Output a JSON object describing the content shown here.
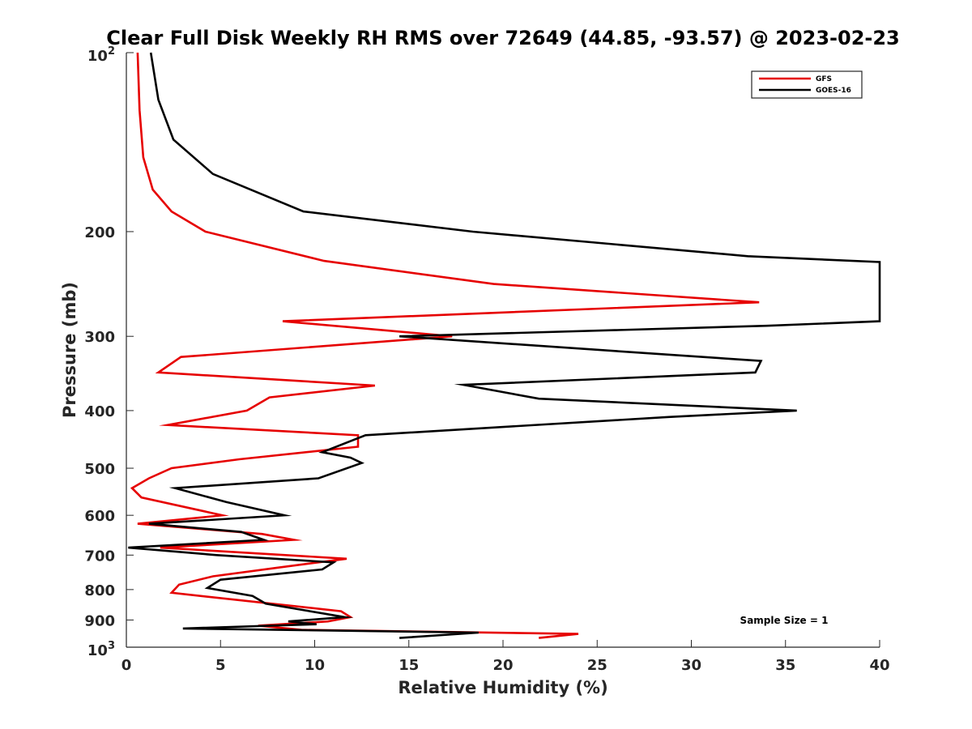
{
  "chart_data": {
    "type": "line",
    "title": "Clear Full Disk Weekly RH RMS over 72649 (44.85, -93.57) @ 2023-02-23",
    "xlabel": "Relative Humidity (%)",
    "ylabel": "Pressure (mb)",
    "xlim": [
      0,
      40
    ],
    "ylim": [
      100,
      1000
    ],
    "yscale": "log",
    "y_reversed": true,
    "grid": false,
    "legend_position": "top-right",
    "x_ticks": [
      0,
      5,
      10,
      15,
      20,
      25,
      30,
      35,
      40
    ],
    "x_tick_labels": [
      "0",
      "5",
      "10",
      "15",
      "20",
      "25",
      "30",
      "35",
      "40"
    ],
    "y_ticks": [
      100,
      200,
      300,
      400,
      500,
      600,
      700,
      800,
      900,
      1000
    ],
    "y_tick_labels": [
      {
        "base": "10",
        "exp": "2"
      },
      {
        "text": "200"
      },
      {
        "text": "300"
      },
      {
        "text": "400"
      },
      {
        "text": "500"
      },
      {
        "text": "600"
      },
      {
        "text": "700"
      },
      {
        "text": "800"
      },
      {
        "text": "900"
      },
      {
        "base": "10",
        "exp": "3"
      }
    ],
    "series": [
      {
        "name": "GFS",
        "color": "#e60000",
        "points": [
          [
            0.6,
            100
          ],
          [
            0.7,
            125
          ],
          [
            0.9,
            150
          ],
          [
            1.4,
            170
          ],
          [
            2.4,
            185
          ],
          [
            4.2,
            200
          ],
          [
            10.5,
            224
          ],
          [
            19.5,
            245
          ],
          [
            33.6,
            263
          ],
          [
            8.3,
            283
          ],
          [
            17.3,
            300
          ],
          [
            2.9,
            325
          ],
          [
            1.7,
            345
          ],
          [
            13.2,
            363
          ],
          [
            7.6,
            380
          ],
          [
            6.4,
            400
          ],
          [
            2.2,
            423
          ],
          [
            12.3,
            440
          ],
          [
            12.3,
            460
          ],
          [
            6.0,
            483
          ],
          [
            2.4,
            500
          ],
          [
            1.2,
            520
          ],
          [
            0.3,
            540
          ],
          [
            0.8,
            560
          ],
          [
            5.1,
            600
          ],
          [
            0.6,
            620
          ],
          [
            7.2,
            645
          ],
          [
            8.9,
            660
          ],
          [
            1.8,
            680
          ],
          [
            11.7,
            710
          ],
          [
            8.0,
            735
          ],
          [
            4.6,
            760
          ],
          [
            2.8,
            785
          ],
          [
            2.4,
            810
          ],
          [
            11.4,
            870
          ],
          [
            11.9,
            890
          ],
          [
            10.7,
            905
          ],
          [
            7.0,
            920
          ],
          [
            9.3,
            935
          ],
          [
            24.0,
            950
          ],
          [
            21.9,
            965
          ]
        ]
      },
      {
        "name": "GOES-16",
        "color": "#000000",
        "points": [
          [
            1.3,
            100
          ],
          [
            1.7,
            120
          ],
          [
            2.5,
            140
          ],
          [
            4.6,
            160
          ],
          [
            9.4,
            185
          ],
          [
            18.4,
            200
          ],
          [
            33.0,
            220
          ],
          [
            40.0,
            225
          ],
          [
            40.0,
            283
          ],
          [
            34.0,
            288
          ],
          [
            14.5,
            300
          ],
          [
            33.7,
            330
          ],
          [
            33.4,
            345
          ],
          [
            17.9,
            362
          ],
          [
            21.9,
            382
          ],
          [
            35.6,
            400
          ],
          [
            28.8,
            410
          ],
          [
            12.7,
            440
          ],
          [
            10.4,
            470
          ],
          [
            11.9,
            480
          ],
          [
            12.5,
            490
          ],
          [
            10.2,
            520
          ],
          [
            2.6,
            540
          ],
          [
            5.3,
            570
          ],
          [
            8.4,
            600
          ],
          [
            1.2,
            620
          ],
          [
            6.1,
            640
          ],
          [
            7.3,
            660
          ],
          [
            0.1,
            680
          ],
          [
            4.8,
            700
          ],
          [
            11.0,
            720
          ],
          [
            10.4,
            740
          ],
          [
            5.0,
            770
          ],
          [
            4.3,
            795
          ],
          [
            6.7,
            820
          ],
          [
            7.4,
            845
          ],
          [
            11.6,
            890
          ],
          [
            8.6,
            905
          ],
          [
            10.1,
            915
          ],
          [
            3.0,
            930
          ],
          [
            18.7,
            945
          ],
          [
            14.5,
            965
          ]
        ]
      }
    ],
    "annotation": "Sample Size = 1"
  }
}
